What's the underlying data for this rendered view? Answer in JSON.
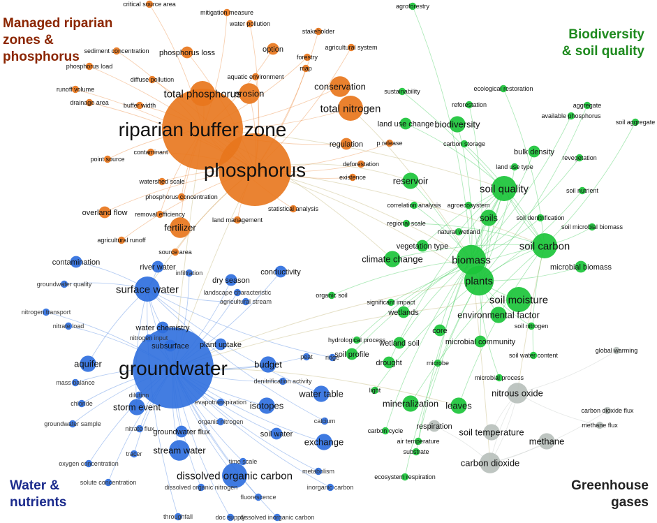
{
  "colors": {
    "orange": "#e8761c",
    "green": "#1bc43a",
    "blue": "#2f6fde",
    "grey": "#b9c0bc",
    "orange_label": "#8b2500",
    "green_label": "#1e8a1e",
    "blue_label": "#1a2a8c",
    "grey_label": "#222222"
  },
  "cluster_labels": {
    "orange": "Managed riparian\nzones &\nphosphorus",
    "green": "Biodiversity\n& soil quality",
    "blue": "Water &\nnutrients",
    "grey": "Greenhouse\ngases"
  },
  "nodes": [
    {
      "label": "riparian buffer zone",
      "cluster": "orange",
      "weight": 10
    },
    {
      "label": "phosphorus",
      "cluster": "orange",
      "weight": 9
    },
    {
      "label": "total phosphorus",
      "cluster": "orange",
      "weight": 5
    },
    {
      "label": "erosion",
      "cluster": "orange",
      "weight": 4
    },
    {
      "label": "conservation",
      "cluster": "orange",
      "weight": 4
    },
    {
      "label": "total nitrogen",
      "cluster": "orange",
      "weight": 5
    },
    {
      "label": "fertilizer",
      "cluster": "orange",
      "weight": 4
    },
    {
      "label": "critical source area",
      "cluster": "orange",
      "weight": 1
    },
    {
      "label": "mitigation measure",
      "cluster": "orange",
      "weight": 1
    },
    {
      "label": "water pollution",
      "cluster": "orange",
      "weight": 1
    },
    {
      "label": "stakeholder",
      "cluster": "orange",
      "weight": 1
    },
    {
      "label": "agricultural system",
      "cluster": "orange",
      "weight": 1
    },
    {
      "label": "option",
      "cluster": "orange",
      "weight": 2
    },
    {
      "label": "forestry",
      "cluster": "orange",
      "weight": 1
    },
    {
      "label": "map",
      "cluster": "orange",
      "weight": 1
    },
    {
      "label": "sediment concentration",
      "cluster": "orange",
      "weight": 1
    },
    {
      "label": "phosphorus loss",
      "cluster": "orange",
      "weight": 2
    },
    {
      "label": "phosphorus load",
      "cluster": "orange",
      "weight": 1
    },
    {
      "label": "diffuse pollution",
      "cluster": "orange",
      "weight": 1
    },
    {
      "label": "aquatic environment",
      "cluster": "orange",
      "weight": 1
    },
    {
      "label": "runoff volume",
      "cluster": "orange",
      "weight": 1
    },
    {
      "label": "drainage area",
      "cluster": "orange",
      "weight": 1
    },
    {
      "label": "buffer width",
      "cluster": "orange",
      "weight": 1
    },
    {
      "label": "regulation",
      "cluster": "orange",
      "weight": 2
    },
    {
      "label": "p release",
      "cluster": "orange",
      "weight": 1
    },
    {
      "label": "contaminant",
      "cluster": "orange",
      "weight": 1
    },
    {
      "label": "point source",
      "cluster": "orange",
      "weight": 1
    },
    {
      "label": "deforestation",
      "cluster": "orange",
      "weight": 1
    },
    {
      "label": "existence",
      "cluster": "orange",
      "weight": 1
    },
    {
      "label": "watershed scale",
      "cluster": "orange",
      "weight": 1
    },
    {
      "label": "phosphorus concentration",
      "cluster": "orange",
      "weight": 1
    },
    {
      "label": "overland flow",
      "cluster": "orange",
      "weight": 2
    },
    {
      "label": "removal efficiency",
      "cluster": "orange",
      "weight": 1
    },
    {
      "label": "statistical analysis",
      "cluster": "orange",
      "weight": 1
    },
    {
      "label": "land management",
      "cluster": "orange",
      "weight": 1
    },
    {
      "label": "agricultural runoff",
      "cluster": "orange",
      "weight": 1
    },
    {
      "label": "source area",
      "cluster": "orange",
      "weight": 1
    },
    {
      "label": "agroforestry",
      "cluster": "green",
      "weight": 1
    },
    {
      "label": "sustainability",
      "cluster": "green",
      "weight": 1
    },
    {
      "label": "ecological restoration",
      "cluster": "green",
      "weight": 1
    },
    {
      "label": "reforestation",
      "cluster": "green",
      "weight": 1
    },
    {
      "label": "aggregate",
      "cluster": "green",
      "weight": 1
    },
    {
      "label": "available phosphorus",
      "cluster": "green",
      "weight": 1
    },
    {
      "label": "soil aggregate",
      "cluster": "green",
      "weight": 1
    },
    {
      "label": "land use change",
      "cluster": "green",
      "weight": 2
    },
    {
      "label": "biodiversity",
      "cluster": "green",
      "weight": 3
    },
    {
      "label": "carbon storage",
      "cluster": "green",
      "weight": 1
    },
    {
      "label": "bulk density",
      "cluster": "green",
      "weight": 2
    },
    {
      "label": "revegetation",
      "cluster": "green",
      "weight": 1
    },
    {
      "label": "land use type",
      "cluster": "green",
      "weight": 1
    },
    {
      "label": "reservoir",
      "cluster": "green",
      "weight": 3
    },
    {
      "label": "soil quality",
      "cluster": "green",
      "weight": 5
    },
    {
      "label": "soil nutrient",
      "cluster": "green",
      "weight": 1
    },
    {
      "label": "correlation analysis",
      "cluster": "green",
      "weight": 1
    },
    {
      "label": "agroecosystem",
      "cluster": "green",
      "weight": 1
    },
    {
      "label": "soils",
      "cluster": "green",
      "weight": 3
    },
    {
      "label": "soil denitrification",
      "cluster": "green",
      "weight": 1
    },
    {
      "label": "regional scale",
      "cluster": "green",
      "weight": 1
    },
    {
      "label": "natural wetland",
      "cluster": "green",
      "weight": 1
    },
    {
      "label": "soil microbial biomass",
      "cluster": "green",
      "weight": 1
    },
    {
      "label": "soil carbon",
      "cluster": "green",
      "weight": 5
    },
    {
      "label": "vegetation type",
      "cluster": "green",
      "weight": 2
    },
    {
      "label": "climate change",
      "cluster": "green",
      "weight": 3
    },
    {
      "label": "biomass",
      "cluster": "green",
      "weight": 6
    },
    {
      "label": "microbial biomass",
      "cluster": "green",
      "weight": 2
    },
    {
      "label": "plants",
      "cluster": "green",
      "weight": 6
    },
    {
      "label": "soil moisture",
      "cluster": "green",
      "weight": 5
    },
    {
      "label": "significant impact",
      "cluster": "green",
      "weight": 1
    },
    {
      "label": "wetlands",
      "cluster": "green",
      "weight": 2
    },
    {
      "label": "environmental factor",
      "cluster": "green",
      "weight": 3
    },
    {
      "label": "core",
      "cluster": "green",
      "weight": 2
    },
    {
      "label": "microbial community",
      "cluster": "green",
      "weight": 2
    },
    {
      "label": "soil nitrogen",
      "cluster": "green",
      "weight": 1
    },
    {
      "label": "hydrological process",
      "cluster": "green",
      "weight": 1
    },
    {
      "label": "wetland soil",
      "cluster": "green",
      "weight": 2
    },
    {
      "label": "soil profile",
      "cluster": "green",
      "weight": 2
    },
    {
      "label": "drought",
      "cluster": "green",
      "weight": 2
    },
    {
      "label": "microbe",
      "cluster": "green",
      "weight": 1
    },
    {
      "label": "soil water content",
      "cluster": "green",
      "weight": 1
    },
    {
      "label": "microbial process",
      "cluster": "green",
      "weight": 1
    },
    {
      "label": "organic soil",
      "cluster": "green",
      "weight": 1
    },
    {
      "label": "mineralization",
      "cluster": "green",
      "weight": 3
    },
    {
      "label": "leaves",
      "cluster": "green",
      "weight": 3
    },
    {
      "label": "light",
      "cluster": "green",
      "weight": 1
    },
    {
      "label": "carbon cycle",
      "cluster": "green",
      "weight": 1
    },
    {
      "label": "air temperature",
      "cluster": "green",
      "weight": 1
    },
    {
      "label": "substrate",
      "cluster": "green",
      "weight": 1
    },
    {
      "label": "ecosystem respiration",
      "cluster": "green",
      "weight": 1
    },
    {
      "label": "global warming",
      "cluster": "grey",
      "weight": 1
    },
    {
      "label": "nitrous oxide",
      "cluster": "grey",
      "weight": 4
    },
    {
      "label": "carbon dioxide flux",
      "cluster": "grey",
      "weight": 1
    },
    {
      "label": "methane flux",
      "cluster": "grey",
      "weight": 1
    },
    {
      "label": "respiration",
      "cluster": "grey",
      "weight": 2
    },
    {
      "label": "soil temperature",
      "cluster": "grey",
      "weight": 3
    },
    {
      "label": "methane",
      "cluster": "grey",
      "weight": 3
    },
    {
      "label": "carbon dioxide",
      "cluster": "grey",
      "weight": 4
    },
    {
      "label": "groundwater",
      "cluster": "blue",
      "weight": 10
    },
    {
      "label": "surface water",
      "cluster": "blue",
      "weight": 5
    },
    {
      "label": "contamination",
      "cluster": "blue",
      "weight": 2
    },
    {
      "label": "river water",
      "cluster": "blue",
      "weight": 2
    },
    {
      "label": "infiltration",
      "cluster": "blue",
      "weight": 1
    },
    {
      "label": "conductivity",
      "cluster": "blue",
      "weight": 2
    },
    {
      "label": "dry season",
      "cluster": "blue",
      "weight": 2
    },
    {
      "label": "groundwater quality",
      "cluster": "blue",
      "weight": 1
    },
    {
      "label": "landscape characteristic",
      "cluster": "blue",
      "weight": 1
    },
    {
      "label": "agricultural stream",
      "cluster": "blue",
      "weight": 1
    },
    {
      "label": "nitrogen transport",
      "cluster": "blue",
      "weight": 1
    },
    {
      "label": "nitrate load",
      "cluster": "blue",
      "weight": 1
    },
    {
      "label": "water chemistry",
      "cluster": "blue",
      "weight": 2
    },
    {
      "label": "nitrogen input",
      "cluster": "blue",
      "weight": 1
    },
    {
      "label": "subsurface",
      "cluster": "blue",
      "weight": 2
    },
    {
      "label": "plant uptake",
      "cluster": "blue",
      "weight": 2
    },
    {
      "label": "aquifer",
      "cluster": "blue",
      "weight": 3
    },
    {
      "label": "budget",
      "cluster": "blue",
      "weight": 3
    },
    {
      "label": "peat",
      "cluster": "blue",
      "weight": 1
    },
    {
      "label": "ridge",
      "cluster": "blue",
      "weight": 1
    },
    {
      "label": "mass balance",
      "cluster": "blue",
      "weight": 1
    },
    {
      "label": "denitrification activity",
      "cluster": "blue",
      "weight": 1
    },
    {
      "label": "dilution",
      "cluster": "blue",
      "weight": 1
    },
    {
      "label": "chloride",
      "cluster": "blue",
      "weight": 1
    },
    {
      "label": "storm event",
      "cluster": "blue",
      "weight": 3
    },
    {
      "label": "evapotranspiration",
      "cluster": "blue",
      "weight": 1
    },
    {
      "label": "isotopes",
      "cluster": "blue",
      "weight": 3
    },
    {
      "label": "water table",
      "cluster": "blue",
      "weight": 3
    },
    {
      "label": "groundwater sample",
      "cluster": "blue",
      "weight": 1
    },
    {
      "label": "nitrate flux",
      "cluster": "blue",
      "weight": 1
    },
    {
      "label": "groundwater flux",
      "cluster": "blue",
      "weight": 2
    },
    {
      "label": "organic nitrogen",
      "cluster": "blue",
      "weight": 1
    },
    {
      "label": "calcium",
      "cluster": "blue",
      "weight": 1
    },
    {
      "label": "soil water",
      "cluster": "blue",
      "weight": 2
    },
    {
      "label": "tracer",
      "cluster": "blue",
      "weight": 1
    },
    {
      "label": "stream water",
      "cluster": "blue",
      "weight": 4
    },
    {
      "label": "exchange",
      "cluster": "blue",
      "weight": 3
    },
    {
      "label": "oxygen concentration",
      "cluster": "blue",
      "weight": 1
    },
    {
      "label": "time scale",
      "cluster": "blue",
      "weight": 1
    },
    {
      "label": "dissolved organic carbon",
      "cluster": "blue",
      "weight": 5
    },
    {
      "label": "metabolism",
      "cluster": "blue",
      "weight": 1
    },
    {
      "label": "solute concentration",
      "cluster": "blue",
      "weight": 1
    },
    {
      "label": "dissolved organic nitrogen",
      "cluster": "blue",
      "weight": 1
    },
    {
      "label": "fluorescence",
      "cluster": "blue",
      "weight": 1
    },
    {
      "label": "inorganic carbon",
      "cluster": "blue",
      "weight": 1
    },
    {
      "label": "throughfall",
      "cluster": "blue",
      "weight": 1
    },
    {
      "label": "doc supply",
      "cluster": "blue",
      "weight": 1
    },
    {
      "label": "dissolved inorganic carbon",
      "cluster": "blue",
      "weight": 1
    }
  ]
}
